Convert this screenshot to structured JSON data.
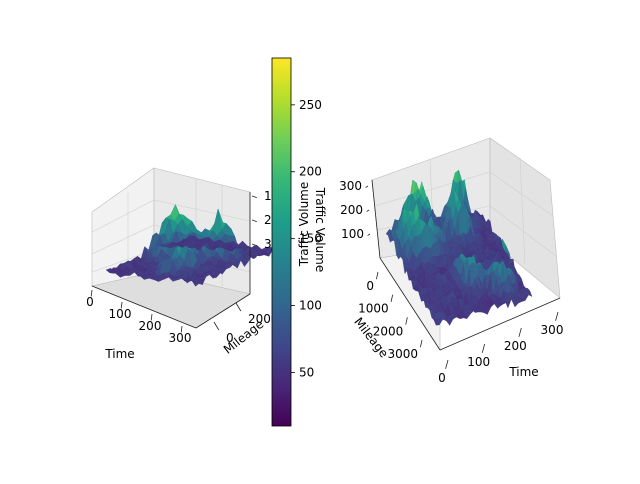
{
  "chart_data": [
    {
      "type": "surface3d",
      "panel": "left",
      "title": "",
      "xlabel": "Time",
      "ylabel": "Mileage",
      "zlabel": "Traffic Volume",
      "x_range": [
        0,
        300
      ],
      "y_range": [
        0,
        3000
      ],
      "z_range": [
        10,
        285
      ],
      "x_ticks": [
        "0",
        "100",
        "200",
        "300"
      ],
      "y_ticks": [
        "0",
        "2000"
      ],
      "z_ticks": [
        "100",
        "200",
        "300"
      ],
      "z_tick_labels_shown": [
        "1",
        "2",
        "3"
      ],
      "colormap": "viridis",
      "grid": true
    },
    {
      "type": "surface3d",
      "panel": "right",
      "title": "",
      "xlabel": "Time",
      "ylabel": "Mileage",
      "zlabel": "Traffic Volume",
      "x_range": [
        0,
        300
      ],
      "y_range": [
        0,
        3500
      ],
      "z_range": [
        10,
        285
      ],
      "x_ticks": [
        "0",
        "100",
        "200",
        "300"
      ],
      "y_ticks": [
        "0",
        "1000",
        "2000",
        "3000"
      ],
      "z_ticks": [
        "100",
        "200",
        "300"
      ],
      "colormap": "viridis",
      "grid": true
    }
  ],
  "colorbar": {
    "label": "Traffic Volume",
    "min": 10,
    "max": 285,
    "ticks": [
      "50",
      "100",
      "150",
      "200",
      "250"
    ],
    "colors": [
      "#440154",
      "#482878",
      "#3e4989",
      "#31688e",
      "#26828e",
      "#1f9e89",
      "#35b779",
      "#6ece58",
      "#b5de2b",
      "#fde725"
    ]
  }
}
